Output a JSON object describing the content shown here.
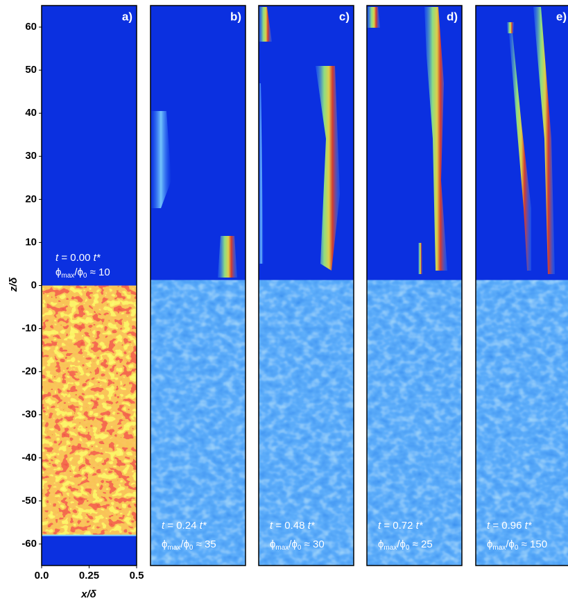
{
  "chart_data": {
    "type": "heatmap",
    "ylabel": "z/δ",
    "xlabel": "x/δ",
    "ylim": [
      -65,
      65
    ],
    "yticks": [
      60,
      50,
      40,
      30,
      20,
      10,
      0,
      -10,
      -20,
      -30,
      -40,
      -50,
      -60
    ],
    "xlim": [
      0,
      0.5
    ],
    "xticks": [
      {
        "value": 0,
        "label": "0.0"
      },
      0.25,
      0.5
    ],
    "panels": [
      {
        "label": "a)",
        "time": [
          "t",
          " = 0.00 ",
          "t*"
        ],
        "ratio": [
          "ϕ",
          "max",
          "/ϕ",
          "0",
          " ≈ 10"
        ]
      },
      {
        "label": "b)",
        "time": [
          "t",
          " = 0.24 ",
          "t*"
        ],
        "ratio": [
          "ϕ",
          "max",
          "/ϕ",
          "0",
          " ≈ 35"
        ]
      },
      {
        "label": "c)",
        "time": [
          "t",
          " = 0.48 ",
          "t*"
        ],
        "ratio": [
          "ϕ",
          "max",
          "/ϕ",
          "0",
          " ≈ 30"
        ]
      },
      {
        "label": "d)",
        "time": [
          "t",
          " = 0.72 ",
          "t*"
        ],
        "ratio": [
          "ϕ",
          "max",
          "/ϕ",
          "0",
          " ≈ 25"
        ]
      },
      {
        "label": "e)",
        "time": [
          "t",
          " = 0.96 ",
          "t*"
        ],
        "ratio": [
          "ϕ",
          "max",
          "/ϕ",
          "0",
          " ≈ 150"
        ]
      }
    ]
  }
}
